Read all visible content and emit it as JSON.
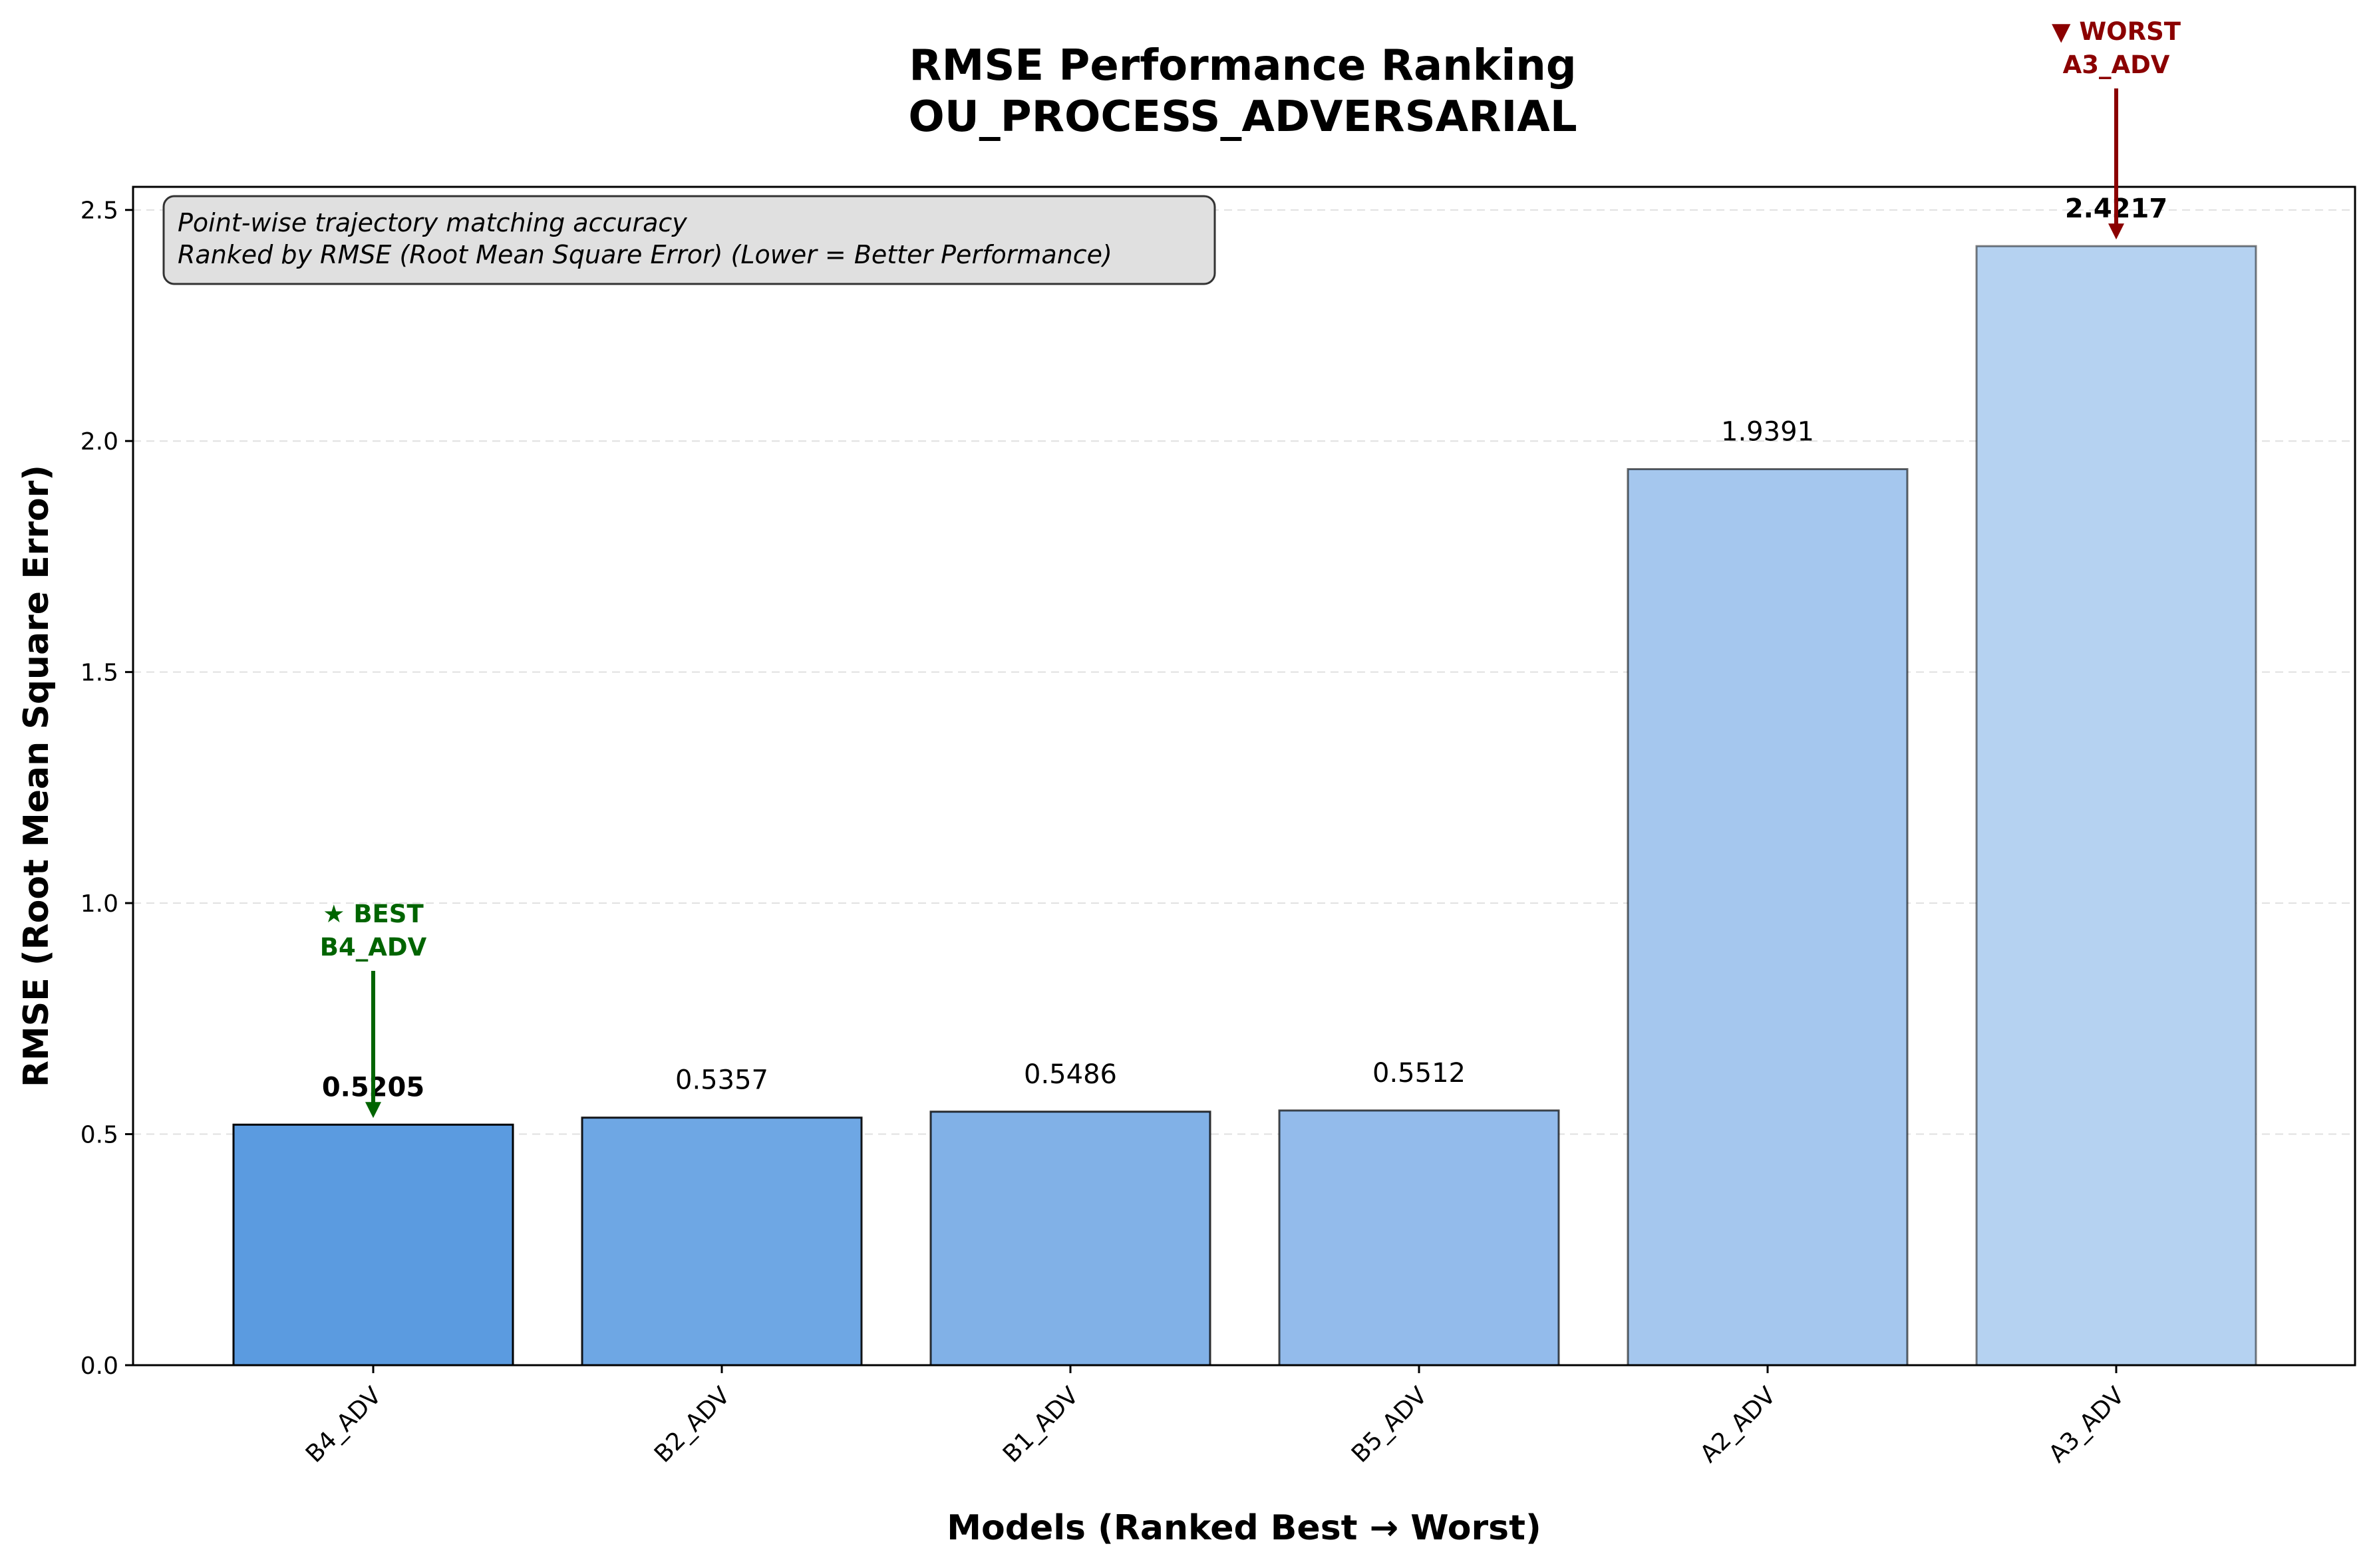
{
  "chart_data": {
    "type": "bar",
    "title": "RMSE Performance Ranking",
    "subtitle": "OU_PROCESS_ADVERSARIAL",
    "xlabel": "Models (Ranked Best → Worst)",
    "ylabel": "RMSE (Root Mean Square Error)",
    "categories": [
      "B4_ADV",
      "B2_ADV",
      "B1_ADV",
      "B5_ADV",
      "A2_ADV",
      "A3_ADV"
    ],
    "values": [
      0.5205,
      0.5357,
      0.5486,
      0.5512,
      1.9391,
      2.4217
    ],
    "value_labels": [
      "0.5205",
      "0.5357",
      "0.5486",
      "0.5512",
      "1.9391",
      "2.4217"
    ],
    "bar_colors": [
      "#5b9be0",
      "#6ea7e4",
      "#81b1e7",
      "#93bbeb",
      "#a5c7ee",
      "#b5d2f1"
    ],
    "ylim": [
      0,
      2.55
    ],
    "yticks": [
      0.0,
      0.5,
      1.0,
      1.5,
      2.0,
      2.5
    ],
    "ytick_labels": [
      "0.0",
      "0.5",
      "1.0",
      "1.5",
      "2.0",
      "2.5"
    ],
    "grid": "horizontal dashed",
    "info_box": [
      "Point-wise trajectory matching accuracy",
      "Ranked by RMSE (Root Mean Square Error) (Lower = Better Performance)"
    ],
    "best": {
      "line1": "★ BEST",
      "line2": "B4_ADV",
      "color": "#006400"
    },
    "worst": {
      "line1": "▼ WORST",
      "line2": "A3_ADV",
      "color": "#8b0000"
    }
  }
}
